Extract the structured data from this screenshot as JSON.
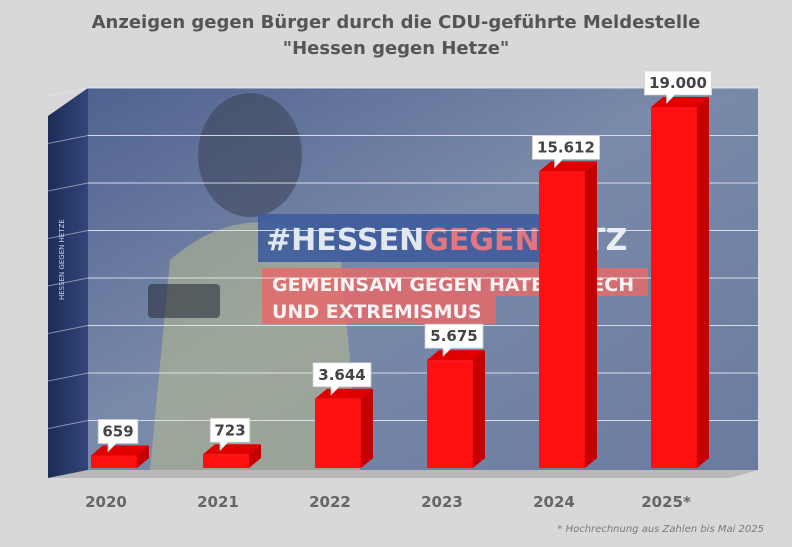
{
  "chart_data": {
    "type": "bar",
    "title": "Anzeigen gegen Bürger durch die CDU-geführte Meldestelle",
    "subtitle": "\"Hessen gegen Hetze\"",
    "categories": [
      "2020",
      "2021",
      "2022",
      "2023",
      "2024",
      "2025*"
    ],
    "values": [
      659,
      723,
      3644,
      5675,
      15612,
      19000
    ],
    "value_labels": [
      "659",
      "723",
      "3.644",
      "5.675",
      "15.612",
      "19.000"
    ],
    "xlabel": "",
    "ylabel": "",
    "ylim": [
      0,
      20000
    ],
    "grid": true,
    "legend": "none",
    "annotation": "* Hochrechnung aus Zahlen bis Mai 2025",
    "background_text": {
      "hashtag_part1": "#HESSEN",
      "hashtag_part2": "GEGEN",
      "hashtag_part3": "HETZ",
      "banner_line1": "GEMEINSAM GEGEN HATE SPEECH",
      "banner_line2": "UND EXTREMISMUS"
    },
    "colors": {
      "bar_front": "#ff1010",
      "bar_side": "#c40000",
      "bar_top": "#e00000",
      "panel": "#5d6f96",
      "grid": "#e8ecf4",
      "axis_label": "#666666",
      "label_text": "#444444"
    }
  }
}
